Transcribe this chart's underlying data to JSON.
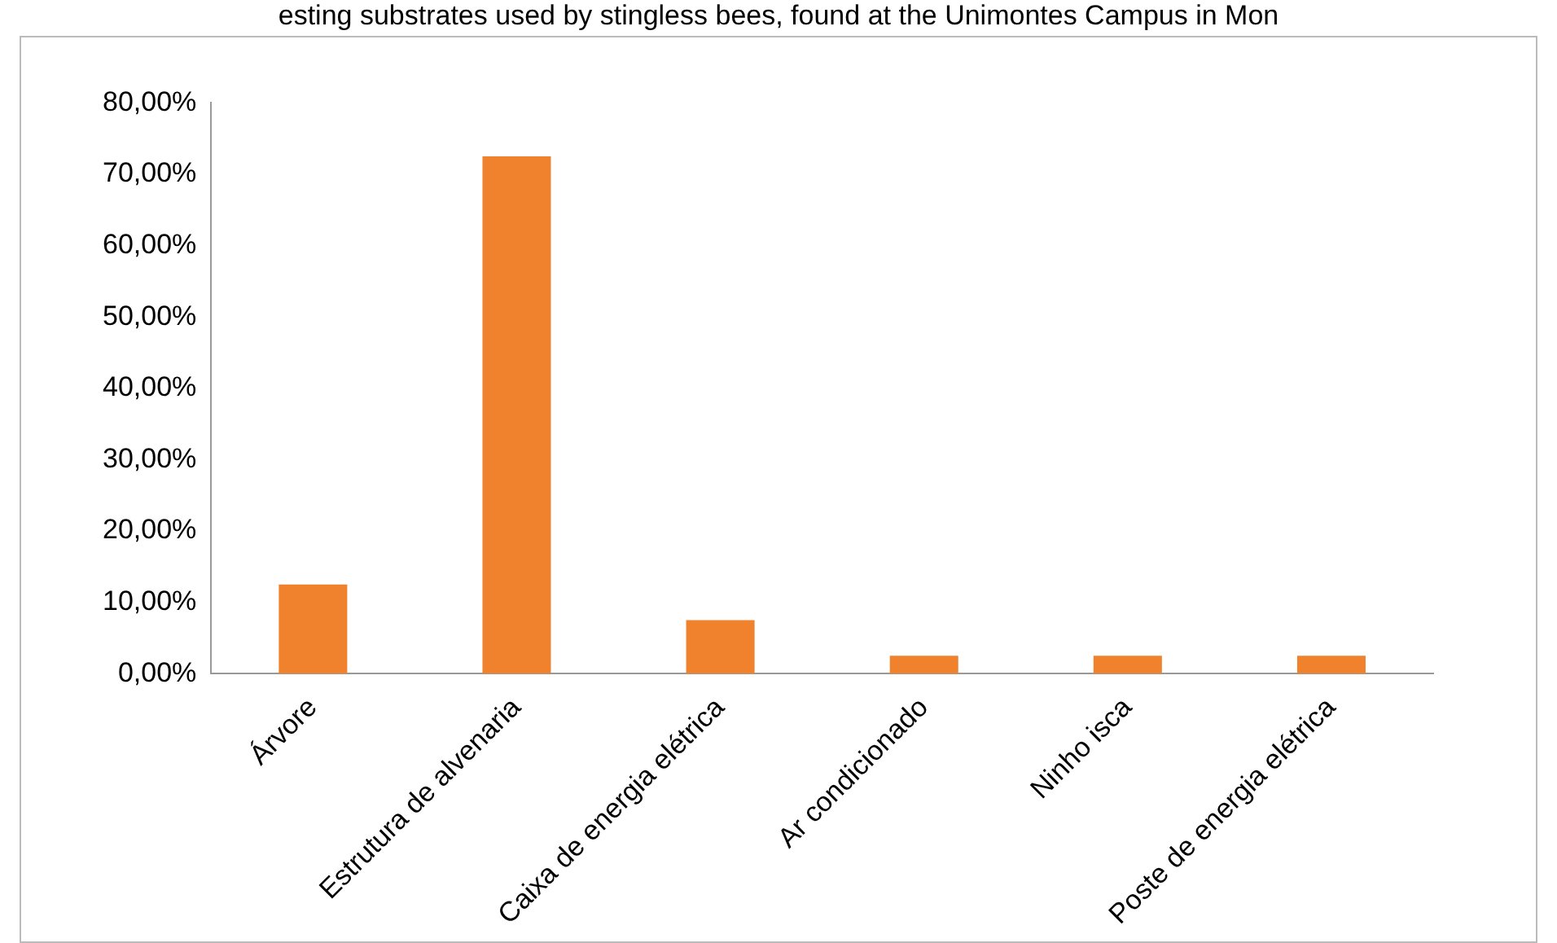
{
  "chart_data": {
    "type": "bar",
    "title": "esting substrates used by stingless bees, found at the Unimontes Campus in Mon",
    "categories": [
      "Árvore",
      "Estrutura de alvenaria",
      "Caixa de energia elétrica",
      "Ar condicionado",
      "Ninho isca",
      "Poste de energia elétrica"
    ],
    "values": [
      12.5,
      72.5,
      7.5,
      2.5,
      2.5,
      2.5
    ],
    "color": "#f0822e",
    "ylim": [
      0,
      80
    ],
    "yticks": [
      {
        "value": 0,
        "label": "0,00%"
      },
      {
        "value": 10,
        "label": "10,00%"
      },
      {
        "value": 20,
        "label": "20,00%"
      },
      {
        "value": 30,
        "label": "30,00%"
      },
      {
        "value": 40,
        "label": "40,00%"
      },
      {
        "value": 50,
        "label": "50,00%"
      },
      {
        "value": 60,
        "label": "60,00%"
      },
      {
        "value": 70,
        "label": "70,00%"
      },
      {
        "value": 80,
        "label": "80,00%"
      }
    ],
    "grid": false
  }
}
